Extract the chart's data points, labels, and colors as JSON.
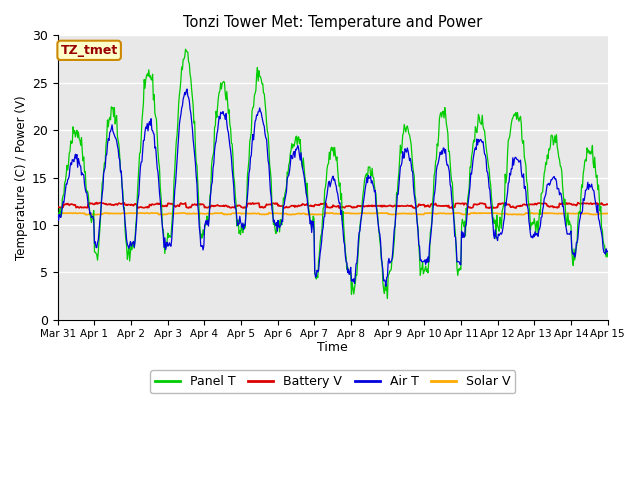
{
  "title": "Tonzi Tower Met: Temperature and Power",
  "xlabel": "Time",
  "ylabel": "Temperature (C) / Power (V)",
  "ylim": [
    0,
    30
  ],
  "xlim_days": 15,
  "xtick_labels": [
    "Mar 31",
    "Apr 1",
    "Apr 2",
    "Apr 3",
    "Apr 4",
    "Apr 5",
    "Apr 6",
    "Apr 7",
    "Apr 8",
    "Apr 9",
    "Apr 10",
    "Apr 11",
    "Apr 12",
    "Apr 13",
    "Apr 14",
    "Apr 15"
  ],
  "ytick_positions": [
    0,
    5,
    10,
    15,
    20,
    25,
    30
  ],
  "annotation_text": "TZ_tmet",
  "bg_color": "#e8e8e8",
  "fig_color": "#ffffff",
  "line_colors": {
    "Panel T": "#00cc00",
    "Battery V": "#dd0000",
    "Air T": "#0000dd",
    "Solar V": "#ffaa00"
  },
  "legend_labels": [
    "Panel T",
    "Battery V",
    "Air T",
    "Solar V"
  ],
  "panel_daily_peaks": [
    20,
    22,
    26,
    28,
    25,
    26,
    19,
    18,
    16,
    20,
    22,
    21,
    22,
    19,
    18
  ],
  "air_daily_peaks": [
    17,
    20,
    21,
    24,
    22,
    22,
    18,
    15,
    15,
    18,
    18,
    19,
    17,
    15,
    14
  ],
  "panel_daily_mins": [
    11,
    7,
    8,
    9,
    10,
    10,
    10,
    5,
    3,
    5,
    5,
    10,
    10,
    10,
    7
  ],
  "air_daily_mins": [
    11,
    8,
    8,
    8,
    10,
    10,
    10,
    5,
    4,
    6,
    6,
    9,
    9,
    9,
    7
  ],
  "battery_base": 12.0,
  "solar_base": 11.2,
  "hours_per_day": 48,
  "total_days": 15
}
